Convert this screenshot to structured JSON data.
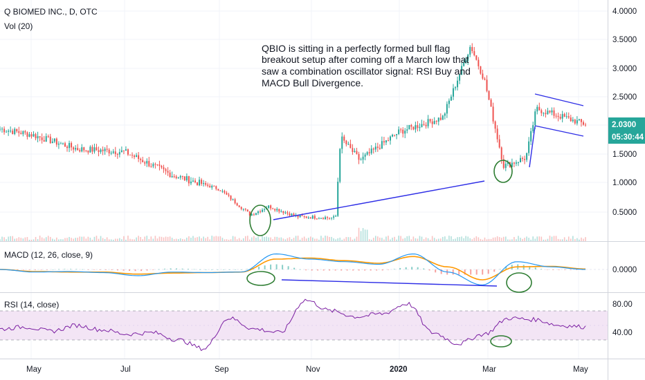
{
  "header": {
    "symbol_title": "Q BIOMED INC., D, OTC",
    "volume_label": "Vol (20)",
    "macd_label": "MACD (12, 26, close, 9)",
    "rsi_label": "RSI (14, close)"
  },
  "annotation": {
    "lines": [
      "QBIO is sitting in a perfectly formed bull flag",
      "breakout setup after coming off a March low that",
      "saw a combination oscillator signal: RSI Buy and",
      "MACD Bull Divergence."
    ]
  },
  "price_tags": {
    "last_price": "2.0300",
    "countdown": "05:30:44"
  },
  "colors": {
    "up": "#26a69a",
    "down": "#ef5350",
    "price_tag": "#26a69a",
    "trendline": "#2d2de6",
    "circle": "#2e7d32",
    "macd_line": "#2196f3",
    "signal_line": "#ff9800",
    "rsi_line": "#7b1fa2",
    "rsi_band": "#f3e5f5"
  },
  "chart_data": [
    {
      "type": "candlestick",
      "title": "Q BIOMED INC., D, OTC",
      "x_ticks": [
        "May",
        "Jul",
        "Sep",
        "Nov",
        "2020",
        "Mar",
        "May"
      ],
      "y_ticks": [
        "4.0000",
        "3.5000",
        "3.0000",
        "2.5000",
        "2.0000",
        "1.5000",
        "1.0000",
        "0.5000"
      ],
      "ylim": [
        0.2,
        4.1
      ],
      "approx_close_path": [
        [
          "Apr 2019",
          1.95
        ],
        [
          "May 2019",
          1.85
        ],
        [
          "Jun 2019",
          1.6
        ],
        [
          "Jul 2019",
          1.55
        ],
        [
          "Aug 2019",
          1.15
        ],
        [
          "Sep 2019",
          0.9
        ],
        [
          "early Oct 2019",
          0.45
        ],
        [
          "mid Oct 2019",
          0.6
        ],
        [
          "Nov 2019",
          0.42
        ],
        [
          "late Nov 2019",
          0.4
        ],
        [
          "Dec 2019",
          1.8
        ],
        [
          "mid Dec 2019",
          1.4
        ],
        [
          "Jan 2020",
          1.9
        ],
        [
          "Feb 2020",
          2.15
        ],
        [
          "late Feb 2020",
          3.4
        ],
        [
          "early Mar 2020",
          2.8
        ],
        [
          "mid Mar 2020",
          1.3
        ],
        [
          "late Mar 2020",
          1.45
        ],
        [
          "early Apr 2020",
          2.3
        ],
        [
          "May 2020",
          2.03
        ]
      ],
      "last_price": 2.03
    },
    {
      "type": "line",
      "title": "MACD (12, 26, close, 9)",
      "y_ticks": [
        "0.0000"
      ],
      "series": [
        {
          "name": "MACD",
          "values": [
            0.0,
            -0.05,
            -0.04,
            -0.06,
            -0.12,
            -0.05,
            -0.06,
            -0.05,
            0.3,
            0.2,
            0.15,
            0.1,
            0.3,
            -0.05,
            -0.3,
            0.15,
            0.05,
            0.0
          ]
        },
        {
          "name": "Signal",
          "values": [
            0.0,
            -0.04,
            -0.05,
            -0.05,
            -0.09,
            -0.07,
            -0.06,
            -0.05,
            0.2,
            0.22,
            0.17,
            0.12,
            0.25,
            0.05,
            -0.2,
            0.05,
            0.06,
            0.01
          ]
        }
      ]
    },
    {
      "type": "line",
      "title": "RSI (14, close)",
      "y_ticks": [
        "80.00",
        "40.00"
      ],
      "ylim": [
        10,
        90
      ],
      "band": [
        30,
        70
      ],
      "series": [
        {
          "name": "RSI",
          "values": [
            45,
            48,
            42,
            50,
            44,
            38,
            40,
            30,
            18,
            60,
            45,
            40,
            85,
            70,
            62,
            66,
            80,
            40,
            25,
            38,
            60,
            58,
            50,
            48
          ]
        }
      ]
    }
  ]
}
